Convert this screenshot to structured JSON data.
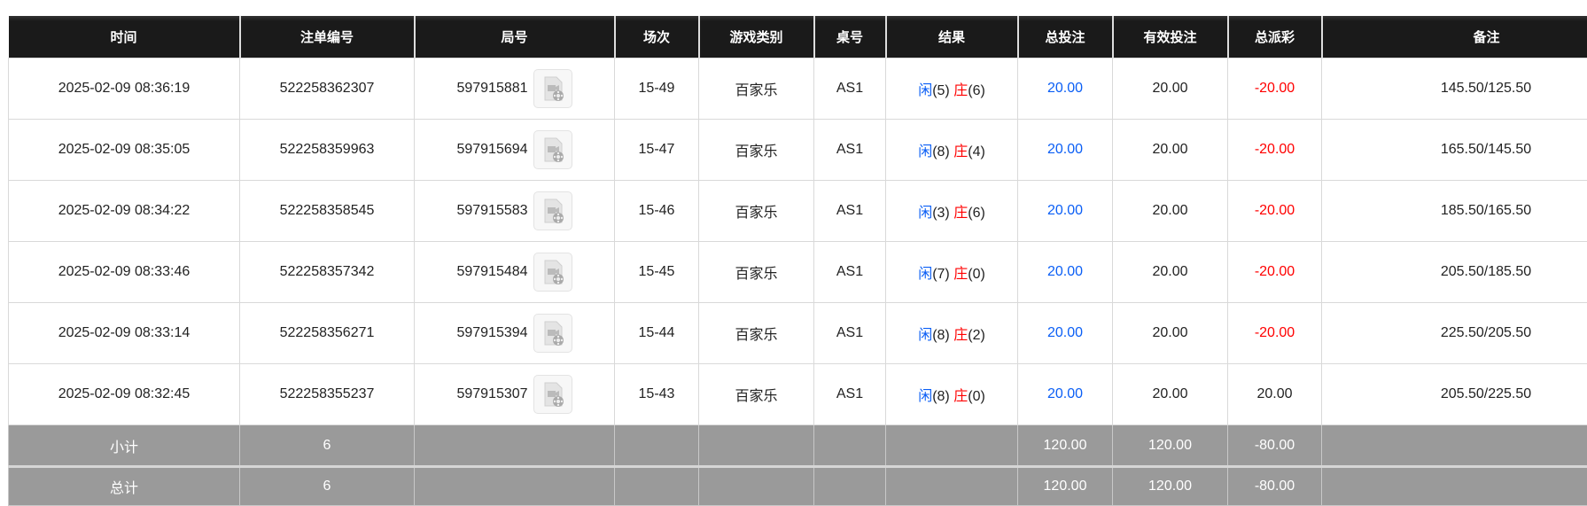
{
  "columns": [
    "时间",
    "注单编号",
    "局号",
    "场次",
    "游戏类别",
    "桌号",
    "结果",
    "总投注",
    "有效投注",
    "总派彩",
    "备注"
  ],
  "rows": [
    {
      "time": "2025-02-09 08:36:19",
      "bet_id": "522258362307",
      "round": "597915881",
      "session": "15-49",
      "game": "百家乐",
      "table": "AS1",
      "player_label": "闲",
      "player": "(5)",
      "banker_label": "庄",
      "banker": "(6)",
      "total_bet": "20.00",
      "valid_bet": "20.00",
      "payout": "-20.00",
      "payout_negative": true,
      "note": "145.50/125.50"
    },
    {
      "time": "2025-02-09 08:35:05",
      "bet_id": "522258359963",
      "round": "597915694",
      "session": "15-47",
      "game": "百家乐",
      "table": "AS1",
      "player_label": "闲",
      "player": "(8)",
      "banker_label": "庄",
      "banker": "(4)",
      "total_bet": "20.00",
      "valid_bet": "20.00",
      "payout": "-20.00",
      "payout_negative": true,
      "note": "165.50/145.50"
    },
    {
      "time": "2025-02-09 08:34:22",
      "bet_id": "522258358545",
      "round": "597915583",
      "session": "15-46",
      "game": "百家乐",
      "table": "AS1",
      "player_label": "闲",
      "player": "(3)",
      "banker_label": "庄",
      "banker": "(6)",
      "total_bet": "20.00",
      "valid_bet": "20.00",
      "payout": "-20.00",
      "payout_negative": true,
      "note": "185.50/165.50"
    },
    {
      "time": "2025-02-09 08:33:46",
      "bet_id": "522258357342",
      "round": "597915484",
      "session": "15-45",
      "game": "百家乐",
      "table": "AS1",
      "player_label": "闲",
      "player": "(7)",
      "banker_label": "庄",
      "banker": "(0)",
      "total_bet": "20.00",
      "valid_bet": "20.00",
      "payout": "-20.00",
      "payout_negative": true,
      "note": "205.50/185.50"
    },
    {
      "time": "2025-02-09 08:33:14",
      "bet_id": "522258356271",
      "round": "597915394",
      "session": "15-44",
      "game": "百家乐",
      "table": "AS1",
      "player_label": "闲",
      "player": "(8)",
      "banker_label": "庄",
      "banker": "(2)",
      "total_bet": "20.00",
      "valid_bet": "20.00",
      "payout": "-20.00",
      "payout_negative": true,
      "note": "225.50/205.50"
    },
    {
      "time": "2025-02-09 08:32:45",
      "bet_id": "522258355237",
      "round": "597915307",
      "session": "15-43",
      "game": "百家乐",
      "table": "AS1",
      "player_label": "闲",
      "player": "(8)",
      "banker_label": "庄",
      "banker": "(0)",
      "total_bet": "20.00",
      "valid_bet": "20.00",
      "payout": "20.00",
      "payout_negative": false,
      "note": "205.50/225.50"
    }
  ],
  "subtotal": {
    "label": "小计",
    "count": "6",
    "total_bet": "120.00",
    "valid_bet": "120.00",
    "payout": "-80.00"
  },
  "total": {
    "label": "总计",
    "count": "6",
    "total_bet": "120.00",
    "valid_bet": "120.00",
    "payout": "-80.00"
  },
  "colors": {
    "header_bg": "#1a1a1a",
    "blue": "#0a5ef5",
    "red": "#ff0000",
    "summary_bg": "#9a9a9a"
  },
  "icons": {
    "replay": "video-replay-icon"
  }
}
